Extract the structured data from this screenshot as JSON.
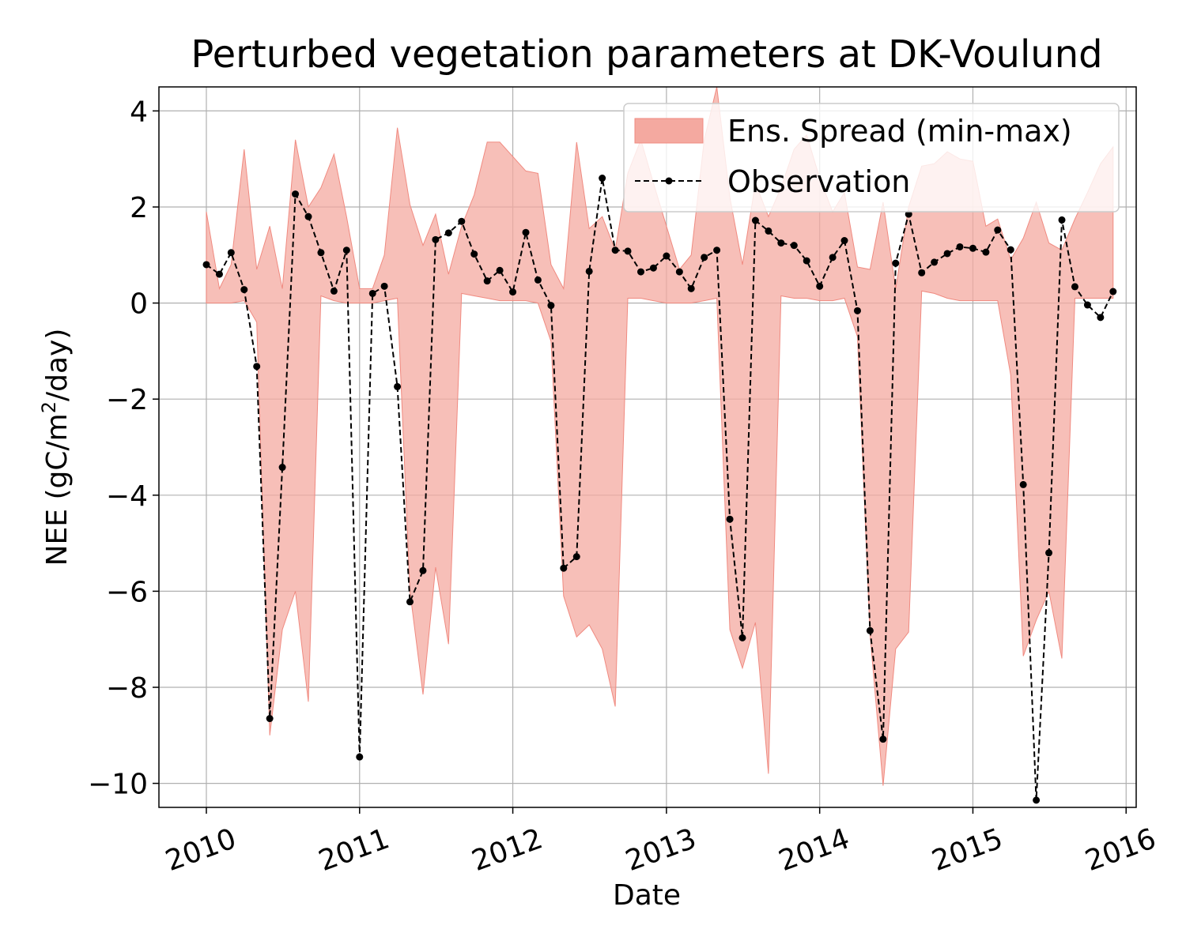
{
  "chart_data": {
    "type": "line",
    "title": "Perturbed vegetation parameters at DK-Voulund",
    "xlabel": "Date",
    "ylabel_main": "NEE  (gC/m",
    "ylabel_sup": "2",
    "ylabel_tail": "/day)",
    "xlim": [
      "2009-09-10",
      "2016-01-25"
    ],
    "ylim": [
      -10.5,
      4.5
    ],
    "grid": true,
    "legend_position": "top-right",
    "x_ticks": [
      "2010-01-01",
      "2011-01-01",
      "2012-01-01",
      "2013-01-01",
      "2014-01-01",
      "2015-01-01",
      "2016-01-01"
    ],
    "x_tick_labels": [
      "2010",
      "2011",
      "2012",
      "2013",
      "2014",
      "2015",
      "2016"
    ],
    "y_ticks": [
      4,
      2,
      0,
      -2,
      -4,
      -6,
      -8,
      -10
    ],
    "y_tick_labels": [
      "4",
      "2",
      "0",
      "−2",
      "−4",
      "−6",
      "−8",
      "−10"
    ],
    "series": [
      {
        "name": "Ens. Spread (min-max)",
        "kind": "band",
        "color": "#f4a9a0",
        "edge_color": "#f08a80",
        "x": [
          "2010-01",
          "2010-02",
          "2010-03",
          "2010-04",
          "2010-05",
          "2010-06",
          "2010-07",
          "2010-08",
          "2010-09",
          "2010-10",
          "2010-11",
          "2010-12",
          "2011-01",
          "2011-02",
          "2011-03",
          "2011-04",
          "2011-05",
          "2011-06",
          "2011-07",
          "2011-08",
          "2011-09",
          "2011-10",
          "2011-11",
          "2011-12",
          "2012-01",
          "2012-02",
          "2012-03",
          "2012-04",
          "2012-05",
          "2012-06",
          "2012-07",
          "2012-08",
          "2012-09",
          "2012-10",
          "2012-11",
          "2012-12",
          "2013-01",
          "2013-02",
          "2013-03",
          "2013-04",
          "2013-05",
          "2013-06",
          "2013-07",
          "2013-08",
          "2013-09",
          "2013-10",
          "2013-11",
          "2013-12",
          "2014-01",
          "2014-02",
          "2014-03",
          "2014-04",
          "2014-05",
          "2014-06",
          "2014-07",
          "2014-08",
          "2014-09",
          "2014-10",
          "2014-11",
          "2014-12",
          "2015-01",
          "2015-02",
          "2015-03",
          "2015-04",
          "2015-05",
          "2015-06",
          "2015-07",
          "2015-08",
          "2015-09",
          "2015-10",
          "2015-11",
          "2015-12"
        ],
        "lower": [
          0.0,
          0.0,
          0.0,
          0.05,
          -0.4,
          -9.0,
          -6.8,
          -6.0,
          -8.3,
          0.15,
          0.05,
          0.0,
          0.0,
          0.0,
          0.05,
          0.1,
          -6.0,
          -8.15,
          -5.5,
          -7.1,
          0.2,
          0.15,
          0.1,
          0.05,
          0.05,
          0.05,
          0.0,
          -0.8,
          -6.1,
          -6.95,
          -6.7,
          -7.2,
          -8.4,
          0.1,
          0.1,
          0.05,
          0.0,
          0.0,
          0.0,
          0.05,
          0.1,
          -6.8,
          -7.6,
          -6.65,
          -9.8,
          0.15,
          0.1,
          0.1,
          0.05,
          0.05,
          0.1,
          -0.7,
          -6.9,
          -10.05,
          -7.2,
          -6.85,
          0.25,
          0.2,
          0.1,
          0.05,
          0.05,
          0.05,
          0.05,
          -1.5,
          -7.35,
          -6.6,
          -6.0,
          -7.4,
          0.1,
          0.1,
          0.1,
          0.1
        ],
        "upper": [
          1.9,
          0.3,
          0.8,
          3.2,
          0.7,
          1.6,
          0.3,
          3.4,
          2.0,
          2.4,
          3.1,
          1.8,
          0.3,
          0.3,
          1.0,
          3.65,
          2.05,
          1.2,
          1.85,
          0.6,
          1.6,
          2.25,
          3.35,
          3.35,
          3.05,
          2.75,
          2.7,
          0.8,
          0.3,
          3.35,
          1.55,
          1.8,
          1.1,
          2.7,
          3.4,
          2.5,
          1.6,
          0.7,
          1.0,
          3.4,
          4.5,
          2.2,
          0.8,
          2.5,
          1.8,
          2.4,
          3.2,
          3.5,
          2.6,
          1.9,
          2.3,
          0.75,
          0.7,
          2.1,
          0.3,
          2.0,
          2.85,
          2.9,
          3.15,
          3.0,
          2.95,
          1.6,
          1.75,
          0.9,
          1.35,
          2.1,
          1.25,
          1.1,
          1.75,
          2.3,
          2.9,
          3.25
        ]
      },
      {
        "name": "Observation",
        "kind": "line",
        "color": "#000000",
        "x": [
          "2010-01",
          "2010-02",
          "2010-03",
          "2010-04",
          "2010-05",
          "2010-06",
          "2010-07",
          "2010-08",
          "2010-09",
          "2010-10",
          "2010-11",
          "2010-12",
          "2011-01",
          "2011-02",
          "2011-03",
          "2011-04",
          "2011-05",
          "2011-06",
          "2011-07",
          "2011-08",
          "2011-09",
          "2011-10",
          "2011-11",
          "2011-12",
          "2012-01",
          "2012-02",
          "2012-03",
          "2012-04",
          "2012-05",
          "2012-06",
          "2012-07",
          "2012-08",
          "2012-09",
          "2012-10",
          "2012-11",
          "2012-12",
          "2013-01",
          "2013-02",
          "2013-03",
          "2013-04",
          "2013-05",
          "2013-06",
          "2013-07",
          "2013-08",
          "2013-09",
          "2013-10",
          "2013-11",
          "2013-12",
          "2014-01",
          "2014-02",
          "2014-03",
          "2014-04",
          "2014-05",
          "2014-06",
          "2014-07",
          "2014-08",
          "2014-09",
          "2014-10",
          "2014-11",
          "2014-12",
          "2015-01",
          "2015-02",
          "2015-03",
          "2015-04",
          "2015-05",
          "2015-06",
          "2015-07",
          "2015-08",
          "2015-09",
          "2015-10",
          "2015-11",
          "2015-12"
        ],
        "y": [
          0.8,
          0.6,
          1.05,
          0.28,
          -1.32,
          -8.65,
          -3.42,
          2.27,
          1.8,
          1.05,
          0.25,
          1.1,
          -9.45,
          0.2,
          0.35,
          -1.74,
          -6.22,
          -5.57,
          1.32,
          1.46,
          1.7,
          1.02,
          0.46,
          0.68,
          0.23,
          1.47,
          0.48,
          -0.05,
          -5.52,
          -5.28,
          0.66,
          2.6,
          1.1,
          1.08,
          0.65,
          0.73,
          0.98,
          0.65,
          0.3,
          0.95,
          1.1,
          -4.5,
          -6.97,
          1.72,
          1.5,
          1.25,
          1.2,
          0.88,
          0.35,
          0.95,
          1.3,
          -0.16,
          -6.82,
          -9.08,
          0.83,
          1.85,
          0.63,
          0.85,
          1.03,
          1.17,
          1.14,
          1.06,
          1.52,
          1.11,
          -3.78,
          -10.35,
          -5.2,
          1.73,
          0.34,
          -0.04,
          -0.3,
          0.24
        ]
      }
    ]
  }
}
